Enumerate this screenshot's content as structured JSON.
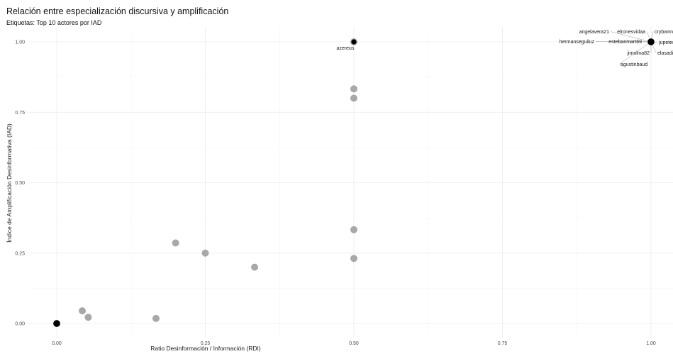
{
  "chart_data": {
    "type": "scatter",
    "title": "Relación entre especialización discursiva y amplificación",
    "subtitle": "Etiquetas: Top 10 actores por IAD",
    "xlabel": "Ratio Desinformación / Información (RDI)",
    "ylabel": "Índice de Amplificación Desinformativa (IAD)",
    "xlim": [
      0,
      1
    ],
    "ylim": [
      0,
      1
    ],
    "x_ticks": [
      "0.00",
      "0.25",
      "0.50",
      "0.75",
      "1.00"
    ],
    "y_ticks": [
      "0.00",
      "0.25",
      "0.50",
      "0.75",
      "1.00"
    ],
    "grid": true,
    "points": [
      {
        "x": 0.0,
        "y": 0.0,
        "highlight": true
      },
      {
        "x": 0.043,
        "y": 0.045
      },
      {
        "x": 0.053,
        "y": 0.022
      },
      {
        "x": 0.167,
        "y": 0.018
      },
      {
        "x": 0.2,
        "y": 0.286
      },
      {
        "x": 0.25,
        "y": 0.25
      },
      {
        "x": 0.333,
        "y": 0.2
      },
      {
        "x": 0.5,
        "y": 0.231
      },
      {
        "x": 0.5,
        "y": 0.333
      },
      {
        "x": 0.5,
        "y": 0.8
      },
      {
        "x": 0.5,
        "y": 0.833
      },
      {
        "x": 0.5,
        "y": 1.0,
        "highlight": true
      },
      {
        "x": 1.0,
        "y": 1.0,
        "highlight": true
      }
    ],
    "labels": [
      "azereus",
      "angelavera21",
      "elronesvidaa",
      "crybwnnk",
      "hermanseguiluz",
      "estebanmart69",
      "jupeter",
      "jimolina82",
      "elasadi",
      "agustinbaud"
    ],
    "colors": {
      "point": "#a8a8a8",
      "highlight": "#000000",
      "grid": "#ebebeb"
    }
  }
}
